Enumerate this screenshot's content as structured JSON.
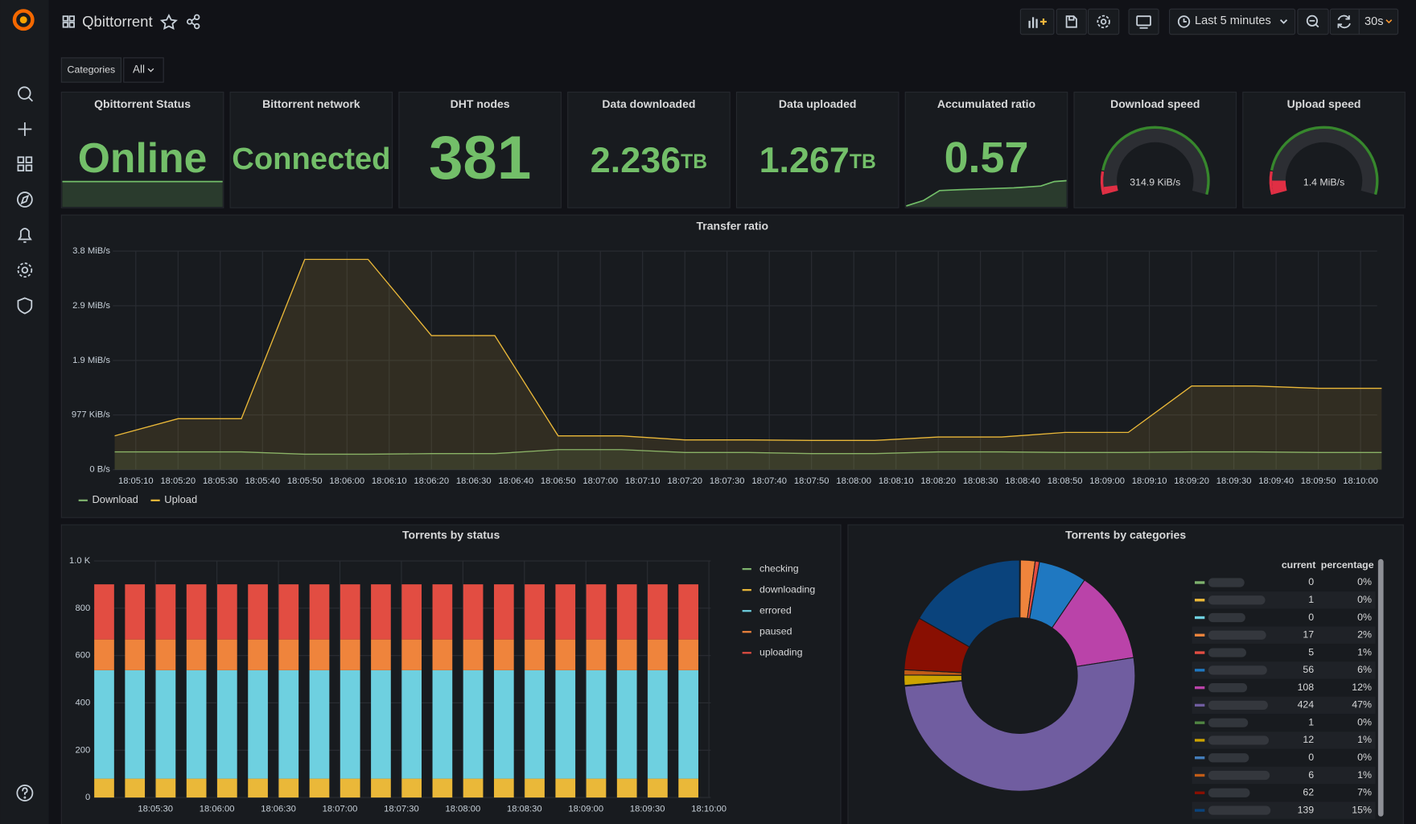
{
  "header": {
    "title": "Qbittorrent",
    "time_range": "Last 5 minutes",
    "refresh": "30s"
  },
  "variables": {
    "label": "Categories",
    "value": "All"
  },
  "stats": [
    {
      "title": "Qbittorrent Status",
      "value": "Online"
    },
    {
      "title": "Bittorrent network",
      "value": "Connected"
    },
    {
      "title": "DHT nodes",
      "value": 381
    },
    {
      "title": "Data downloaded",
      "value": 2.236,
      "unit": "TB"
    },
    {
      "title": "Data uploaded",
      "value": 1.267,
      "unit": "TB"
    },
    {
      "title": "Accumulated ratio",
      "value": 0.57
    }
  ],
  "gauges": [
    {
      "title": "Download speed",
      "value": "314.9 KiB/s"
    },
    {
      "title": "Upload speed",
      "value": "1.4 MiB/s"
    }
  ],
  "transfer_chart": {
    "type": "line",
    "title": "Transfer ratio",
    "x": [
      "18:05:05",
      "18:05:20",
      "18:05:35",
      "18:05:50",
      "18:06:05",
      "18:06:20",
      "18:06:35",
      "18:06:50",
      "18:07:05",
      "18:07:20",
      "18:07:35",
      "18:07:50",
      "18:08:05",
      "18:08:20",
      "18:08:35",
      "18:08:50",
      "18:09:05",
      "18:09:20",
      "18:09:35",
      "18:09:50",
      "18:10:05"
    ],
    "series": [
      {
        "name": "Download",
        "color": "#7EB26D",
        "values": [
          0.31,
          0.31,
          0.31,
          0.27,
          0.27,
          0.28,
          0.28,
          0.35,
          0.35,
          0.3,
          0.3,
          0.28,
          0.28,
          0.31,
          0.31,
          0.3,
          0.3,
          0.31,
          0.31,
          0.3,
          0.3
        ]
      },
      {
        "name": "Upload",
        "color": "#EAB839",
        "values": [
          0.59,
          0.89,
          0.89,
          3.67,
          3.67,
          2.34,
          2.34,
          0.59,
          0.59,
          0.52,
          0.52,
          0.51,
          0.51,
          0.57,
          0.57,
          0.65,
          0.65,
          1.46,
          1.46,
          1.42,
          1.42
        ]
      }
    ],
    "xlim": [
      "18:05:05",
      "18:10:05"
    ],
    "xticks": [
      "18:05:10",
      "18:05:20",
      "18:05:30",
      "18:05:40",
      "18:05:50",
      "18:06:00",
      "18:06:10",
      "18:06:20",
      "18:06:30",
      "18:06:40",
      "18:06:50",
      "18:07:00",
      "18:07:10",
      "18:07:20",
      "18:07:30",
      "18:07:40",
      "18:07:50",
      "18:08:00",
      "18:08:10",
      "18:08:20",
      "18:08:30",
      "18:08:40",
      "18:08:50",
      "18:09:00",
      "18:09:10",
      "18:09:20",
      "18:09:30",
      "18:09:40",
      "18:09:50",
      "18:10:00"
    ],
    "ylim": [
      0,
      3.815
    ],
    "yticks": [
      {
        "value": 0,
        "label": "0 B/s"
      },
      {
        "value": 0.954,
        "label": "977 KiB/s"
      },
      {
        "value": 1.907,
        "label": "1.9 MiB/s"
      },
      {
        "value": 2.861,
        "label": "2.9 MiB/s"
      },
      {
        "value": 3.815,
        "label": "3.8 MiB/s"
      }
    ],
    "grid": true
  },
  "status_chart": {
    "type": "stacked-bar",
    "title": "Torrents by status",
    "x": [
      "18:05:05",
      "18:05:20",
      "18:05:35",
      "18:05:50",
      "18:06:05",
      "18:06:20",
      "18:06:35",
      "18:06:50",
      "18:07:05",
      "18:07:20",
      "18:07:35",
      "18:07:50",
      "18:08:05",
      "18:08:20",
      "18:08:35",
      "18:08:50",
      "18:09:05",
      "18:09:20",
      "18:09:35",
      "18:09:50"
    ],
    "series": [
      {
        "name": "checking",
        "color": "#7EB26D",
        "values": [
          0,
          0,
          0,
          0,
          0,
          0,
          0,
          0,
          0,
          0,
          0,
          0,
          0,
          0,
          0,
          0,
          0,
          0,
          0,
          0
        ]
      },
      {
        "name": "downloading",
        "color": "#EAB839",
        "values": [
          80,
          80,
          80,
          80,
          80,
          80,
          80,
          80,
          80,
          80,
          80,
          80,
          80,
          80,
          80,
          80,
          80,
          80,
          80,
          80
        ]
      },
      {
        "name": "errored",
        "color": "#6ED0E0",
        "values": [
          458,
          458,
          458,
          458,
          458,
          458,
          458,
          458,
          458,
          458,
          458,
          458,
          458,
          458,
          458,
          458,
          458,
          458,
          458,
          458
        ]
      },
      {
        "name": "paused",
        "color": "#EF843C",
        "values": [
          130,
          130,
          130,
          130,
          130,
          130,
          130,
          130,
          130,
          130,
          130,
          130,
          130,
          130,
          130,
          130,
          130,
          130,
          130,
          130
        ]
      },
      {
        "name": "uploading",
        "color": "#E24D42",
        "values": [
          233,
          233,
          233,
          233,
          233,
          233,
          233,
          233,
          233,
          233,
          233,
          233,
          233,
          233,
          233,
          233,
          233,
          233,
          233,
          233
        ]
      }
    ],
    "xlim": [
      "18:05:00",
      "18:10:00"
    ],
    "xticks": [
      "18:05:30",
      "18:06:00",
      "18:06:30",
      "18:07:00",
      "18:07:30",
      "18:08:00",
      "18:08:30",
      "18:09:00",
      "18:09:30",
      "18:10:00"
    ],
    "ylim": [
      0,
      1000
    ],
    "yticks": [
      0,
      200,
      400,
      600,
      800,
      {
        "value": 1000,
        "label": "1.0 K"
      }
    ],
    "grid": true
  },
  "category_chart": {
    "type": "donut",
    "title": "Torrents by categories",
    "columns": [
      "current",
      "percentage"
    ],
    "categories": [
      null,
      null,
      null,
      null,
      null,
      null,
      null,
      null,
      null,
      null,
      null,
      null,
      null,
      null
    ],
    "colors": [
      "#7EB26D",
      "#EAB839",
      "#6ED0E0",
      "#EF843C",
      "#E24D42",
      "#1F78C1",
      "#BA43A9",
      "#705DA0",
      "#508642",
      "#CCA300",
      "#447EBC",
      "#C15C17",
      "#890F02",
      "#0A437C"
    ],
    "values": [
      0,
      1,
      0,
      17,
      5,
      56,
      108,
      424,
      1,
      12,
      0,
      6,
      62,
      139
    ],
    "percentages": {
      "values": [
        0,
        0,
        0,
        2,
        1,
        6,
        12,
        47,
        0,
        1,
        0,
        1,
        7,
        15
      ],
      "value_labels": [
        "0%",
        "0%",
        "0%",
        "2%",
        "1%",
        "6%",
        "12%",
        "47%",
        "0%",
        "1%",
        "0%",
        "1%",
        "7%",
        "15%"
      ]
    }
  }
}
